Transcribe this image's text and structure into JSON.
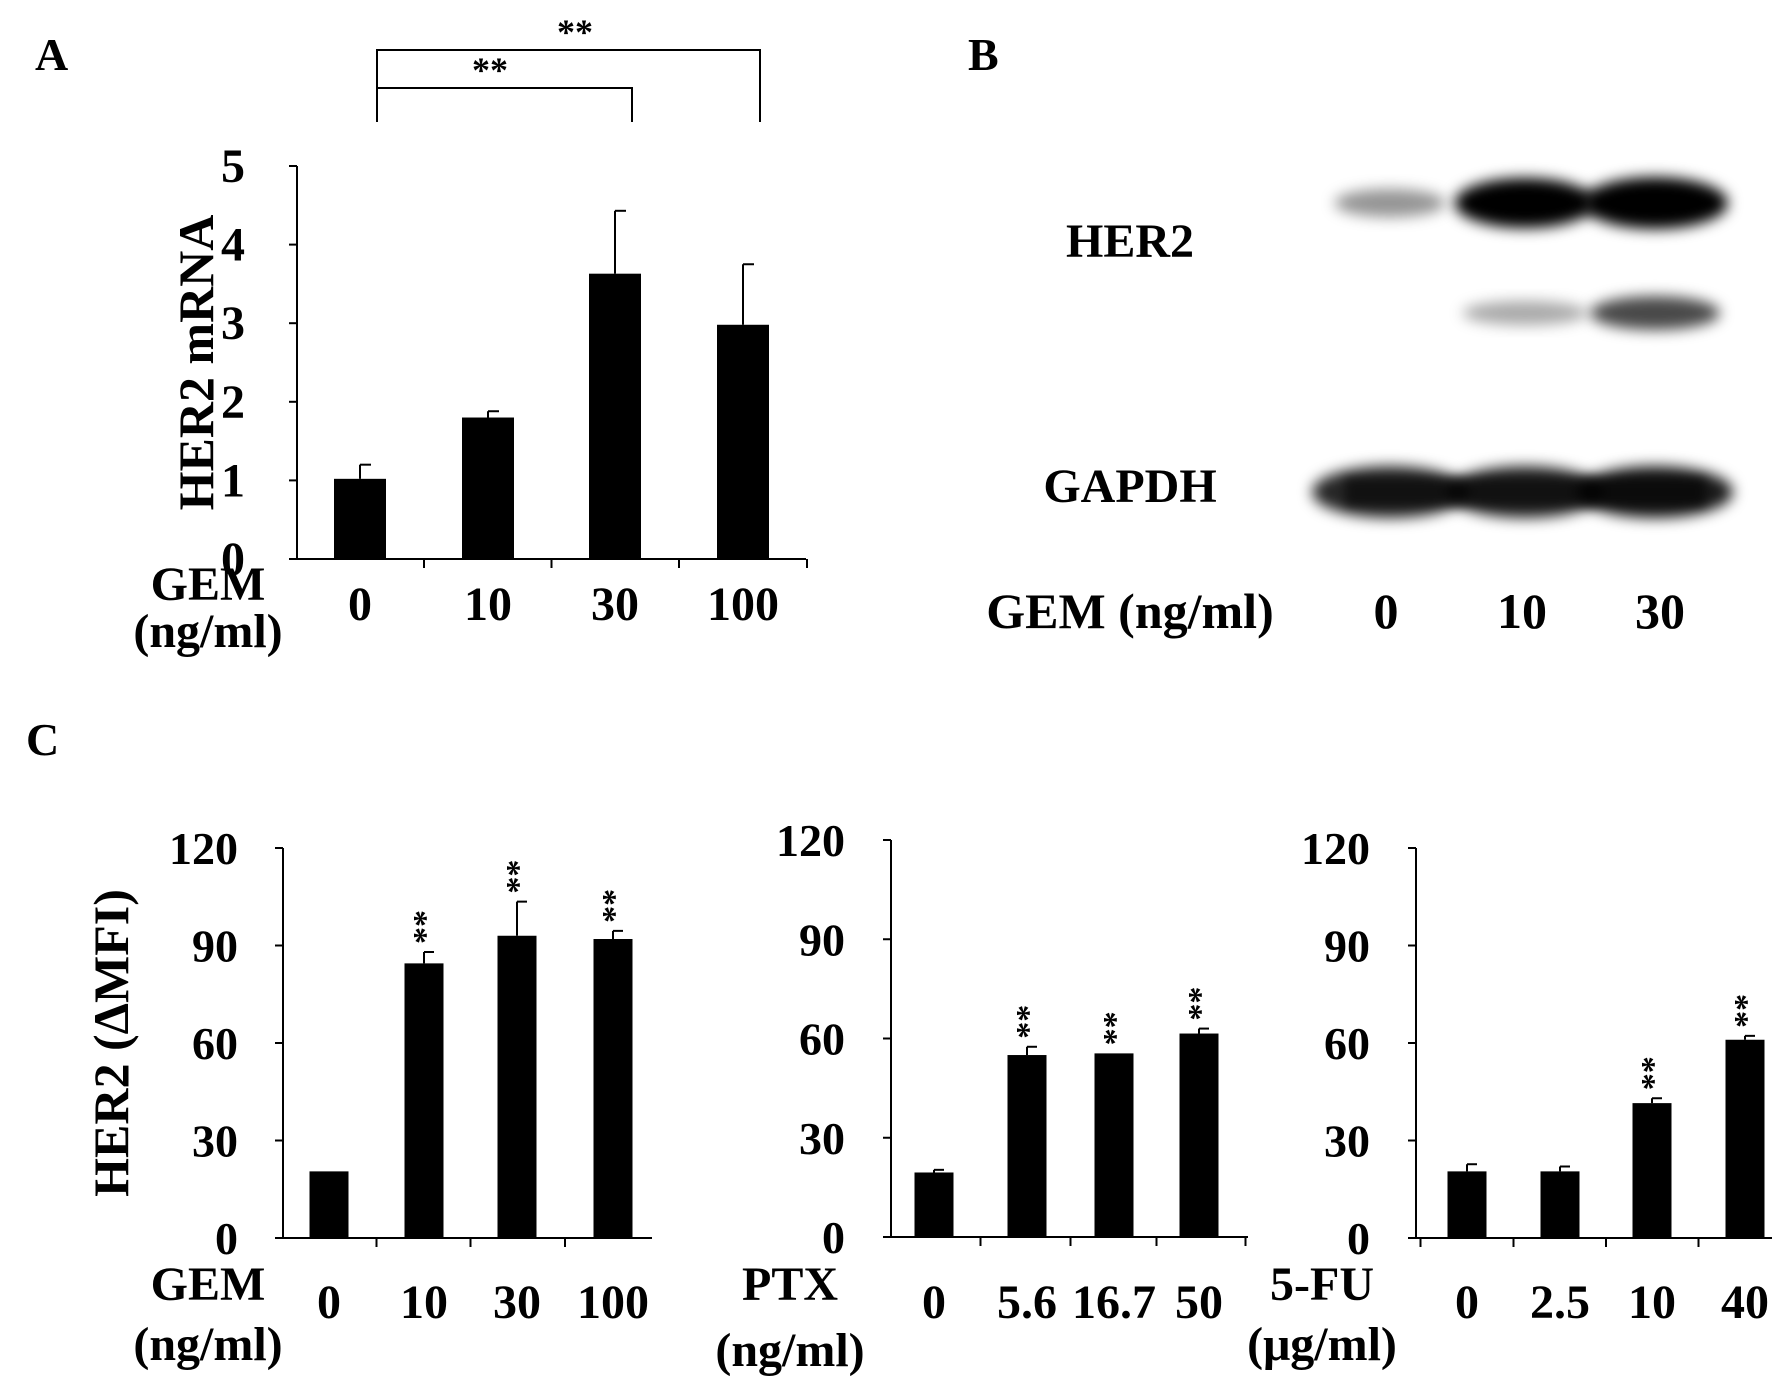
{
  "panels": {
    "A": "A",
    "B": "B",
    "C": "C"
  },
  "chart_data": [
    {
      "panel": "A",
      "type": "bar",
      "ylabel": "HER2 mRNA",
      "xlabel_lines": [
        "GEM",
        "(ng/ml)"
      ],
      "categories": [
        "0",
        "10",
        "30",
        "100"
      ],
      "values": [
        1.02,
        1.8,
        3.63,
        2.98
      ],
      "errors": [
        0.18,
        0.08,
        0.8,
        0.77
      ],
      "ylim": [
        0,
        5
      ],
      "yticks": [
        "0",
        "1",
        "2",
        "3",
        "4",
        "5"
      ],
      "significance": [
        {
          "from": "0",
          "to": "30",
          "label": "**"
        },
        {
          "from": "0",
          "to": "100",
          "label": "**"
        }
      ]
    },
    {
      "panel": "C",
      "type": "bar",
      "ylabel": "HER2 (ΔMFI)",
      "xlabel_lines": [
        "GEM",
        "(ng/ml)"
      ],
      "categories": [
        "0",
        "10",
        "30",
        "100"
      ],
      "values": [
        20.5,
        84.5,
        93,
        92
      ],
      "errors": [
        0,
        3.5,
        10.5,
        2.5
      ],
      "ylim": [
        0,
        120
      ],
      "yticks": [
        "0",
        "30",
        "60",
        "90",
        "120"
      ],
      "stars": [
        "",
        "**",
        "**",
        "**"
      ]
    },
    {
      "panel": "C",
      "type": "bar",
      "ylabel": "",
      "xlabel_lines": [
        "PTX",
        "(ng/ml)"
      ],
      "categories": [
        "0",
        "5.6",
        "16.7",
        "50"
      ],
      "values": [
        19.5,
        55,
        55.5,
        61.5
      ],
      "errors": [
        0.8,
        2.5,
        0,
        1.5
      ],
      "ylim": [
        0,
        120
      ],
      "yticks": [
        "0",
        "30",
        "60",
        "90",
        "120"
      ],
      "stars": [
        "",
        "**",
        "**",
        "**"
      ]
    },
    {
      "panel": "C",
      "type": "bar",
      "ylabel": "",
      "xlabel_lines": [
        "5-FU",
        "(μg/ml)"
      ],
      "categories": [
        "0",
        "2.5",
        "10",
        "40"
      ],
      "values": [
        20.5,
        20.5,
        41.5,
        61
      ],
      "errors": [
        2.2,
        1.5,
        1.5,
        1.2
      ],
      "ylim": [
        0,
        120
      ],
      "yticks": [
        "0",
        "30",
        "60",
        "90",
        "120"
      ],
      "stars": [
        "",
        "",
        "**",
        "**"
      ]
    }
  ],
  "western_blot": {
    "xlabel": "GEM (ng/ml)",
    "lanes": [
      "0",
      "10",
      "30"
    ],
    "rows": [
      {
        "label": "HER2",
        "upper_band_intensity": [
          0.3,
          0.95,
          1.0
        ],
        "lower_band_intensity": [
          0.0,
          0.35,
          0.75
        ]
      },
      {
        "label": "GAPDH",
        "band_intensity": [
          0.85,
          0.85,
          0.9
        ]
      }
    ]
  }
}
